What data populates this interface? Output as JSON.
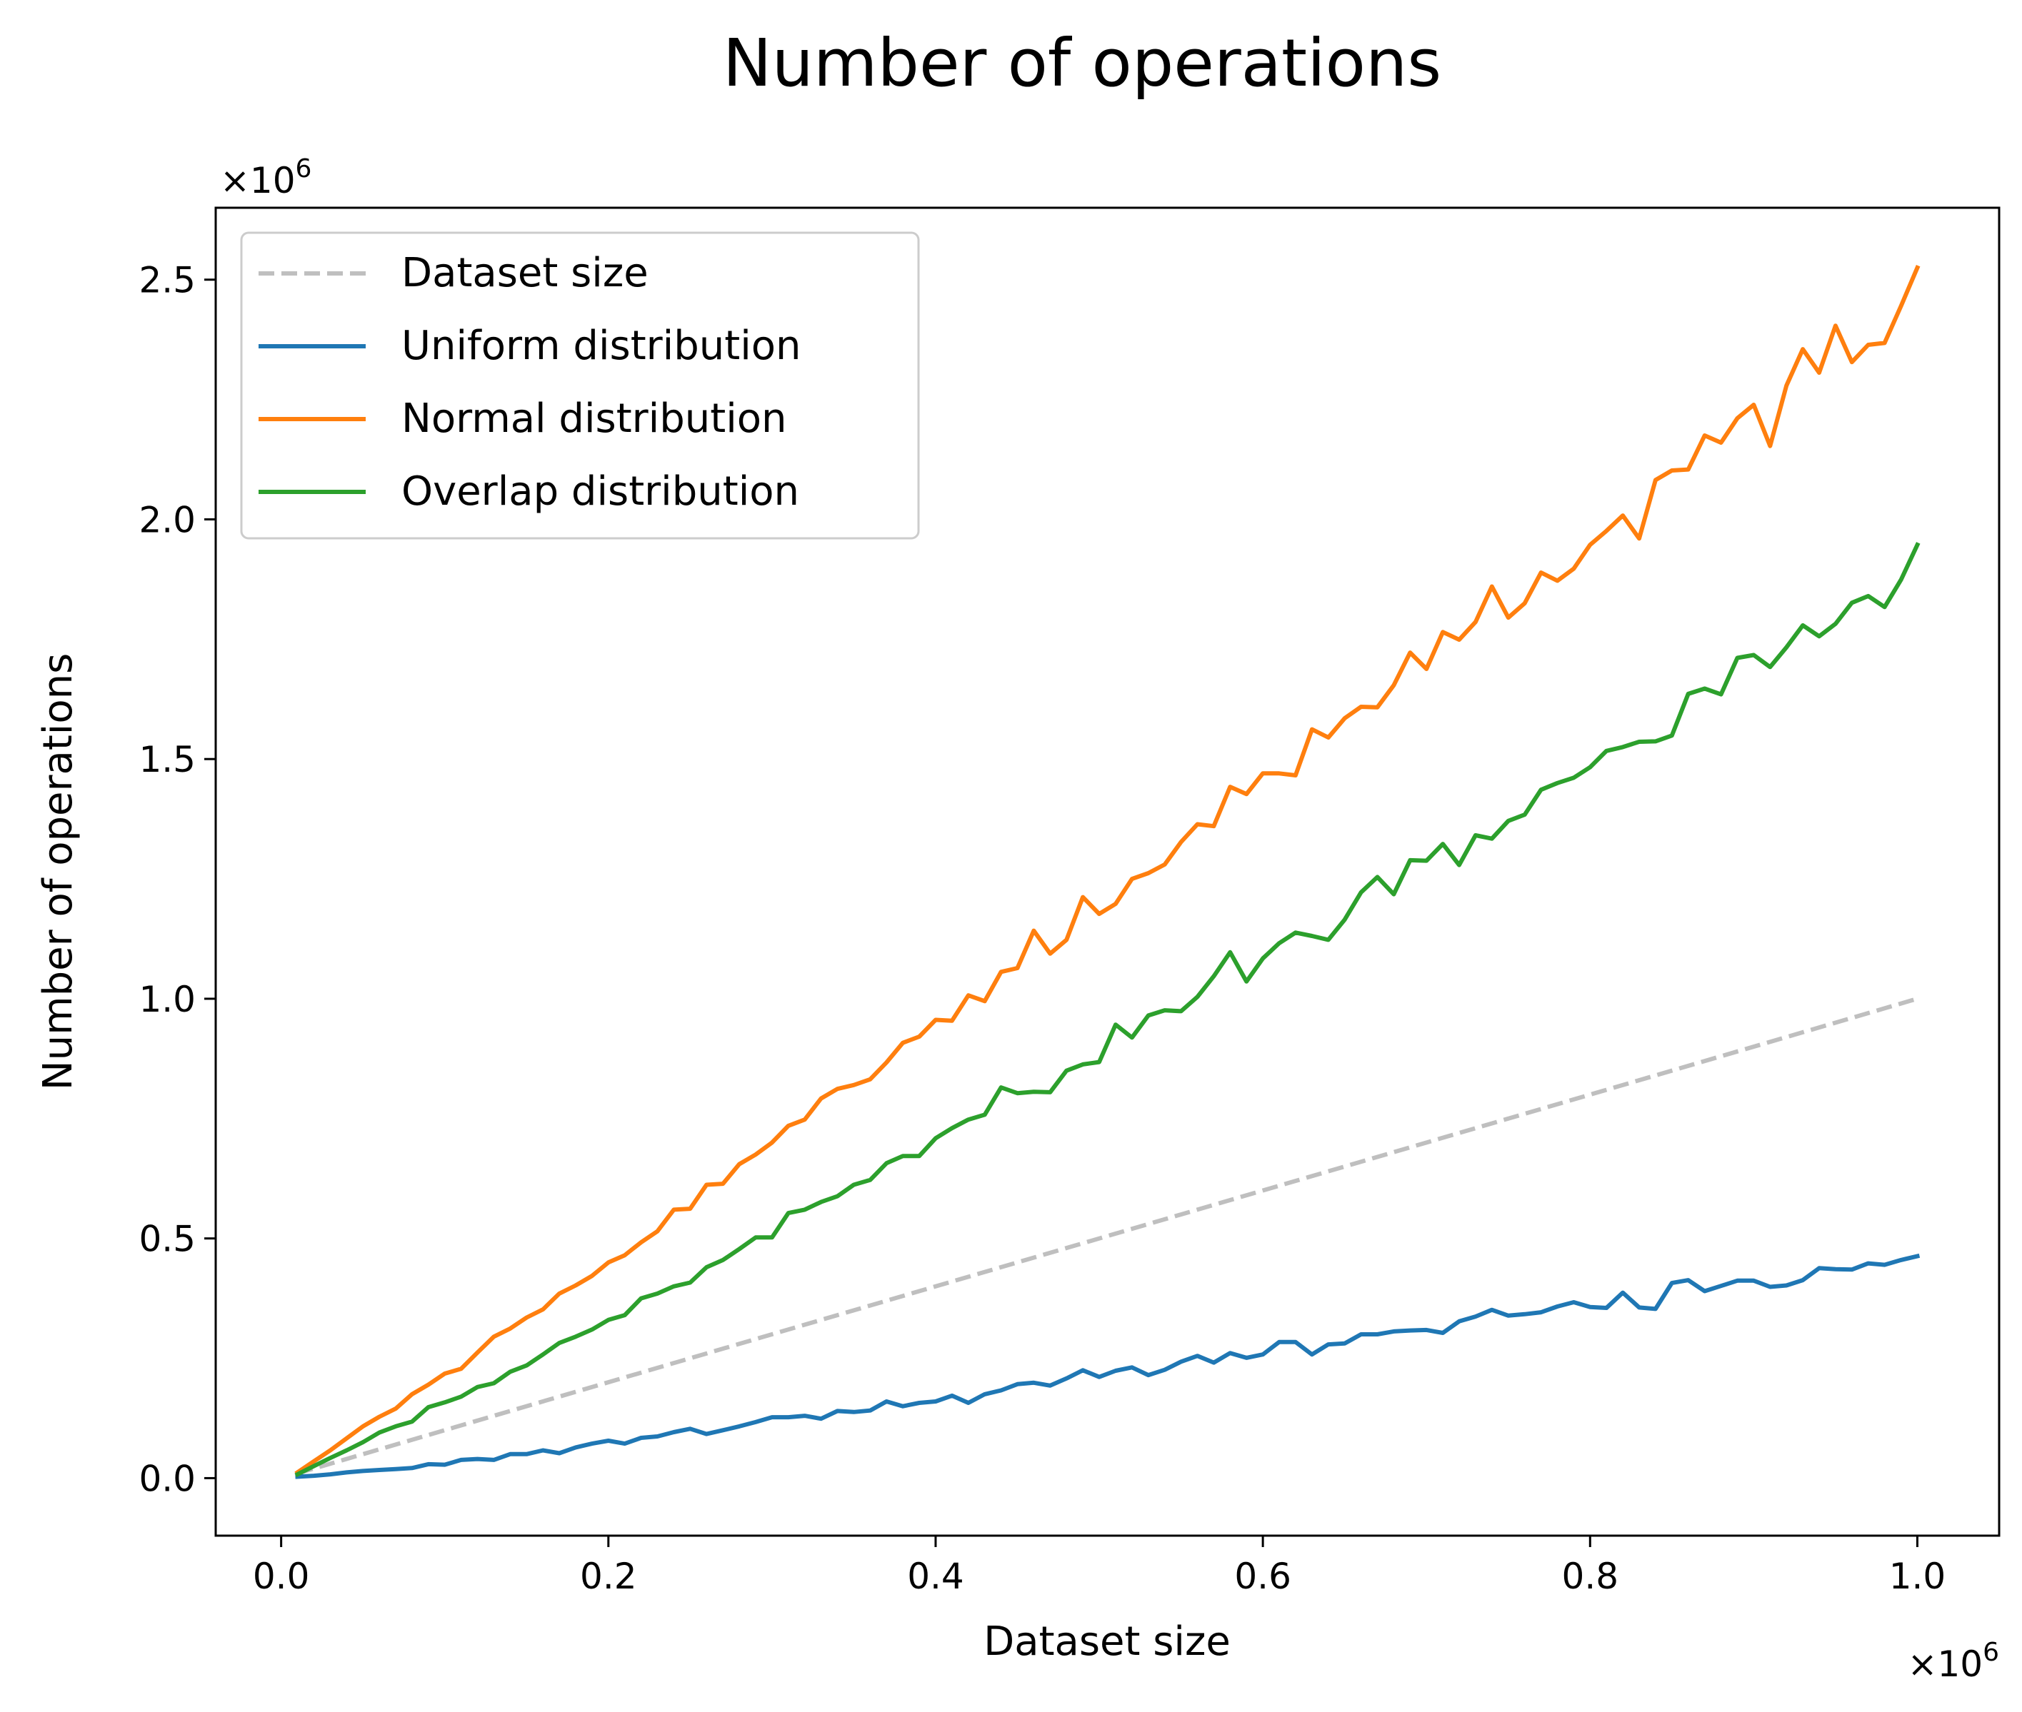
{
  "chart_data": {
    "type": "line",
    "title": "Number of operations",
    "xlabel": "Dataset size",
    "ylabel": "Number of operations",
    "x_offset_label": "×10",
    "x_offset_exp": "6",
    "y_offset_label": "×10",
    "y_offset_exp": "6",
    "xlim": [
      -0.04,
      1.05
    ],
    "ylim": [
      -0.12,
      2.65
    ],
    "xticks": [
      0.0,
      0.2,
      0.4,
      0.6,
      0.8,
      1.0
    ],
    "xtick_labels": [
      "0.0",
      "0.2",
      "0.4",
      "0.6",
      "0.8",
      "1.0"
    ],
    "yticks": [
      0.0,
      0.5,
      1.0,
      1.5,
      2.0,
      2.5
    ],
    "ytick_labels": [
      "0.0",
      "0.5",
      "1.0",
      "1.5",
      "2.0",
      "2.5"
    ],
    "legend_position": "top-left",
    "grid": false,
    "series": [
      {
        "name": "Dataset size",
        "color": "#bfbfbf",
        "dashed": true,
        "x": [
          0.01,
          1.0
        ],
        "y": [
          0.01,
          1.0
        ]
      },
      {
        "name": "Uniform distribution",
        "color": "#1f77b4",
        "dashed": false,
        "x": [
          0.01,
          0.02,
          0.03,
          0.04,
          0.05,
          0.06,
          0.07,
          0.08,
          0.09,
          0.1,
          0.11,
          0.12,
          0.13,
          0.14,
          0.15,
          0.16,
          0.17,
          0.18,
          0.19,
          0.2,
          0.21,
          0.22,
          0.23,
          0.24,
          0.25,
          0.26,
          0.27,
          0.28,
          0.29,
          0.3,
          0.31,
          0.32,
          0.33,
          0.34,
          0.35,
          0.36,
          0.37,
          0.38,
          0.39,
          0.4,
          0.41,
          0.42,
          0.43,
          0.44,
          0.45,
          0.46,
          0.47,
          0.48,
          0.49,
          0.5,
          0.51,
          0.52,
          0.53,
          0.54,
          0.55,
          0.56,
          0.57,
          0.58,
          0.59,
          0.6,
          0.61,
          0.62,
          0.63,
          0.64,
          0.65,
          0.66,
          0.67,
          0.68,
          0.69,
          0.7,
          0.71,
          0.72,
          0.73,
          0.74,
          0.75,
          0.76,
          0.77,
          0.78,
          0.79,
          0.8,
          0.81,
          0.82,
          0.83,
          0.84,
          0.85,
          0.86,
          0.87,
          0.88,
          0.89,
          0.9,
          0.91,
          0.92,
          0.93,
          0.94,
          0.95,
          0.96,
          0.97,
          0.98,
          0.99,
          1.0
        ],
        "y": [
          0.003,
          0.005,
          0.008,
          0.012,
          0.015,
          0.017,
          0.019,
          0.021,
          0.029,
          0.028,
          0.038,
          0.04,
          0.038,
          0.05,
          0.05,
          0.058,
          0.052,
          0.064,
          0.072,
          0.078,
          0.072,
          0.084,
          0.087,
          0.096,
          0.103,
          0.092,
          0.1,
          0.108,
          0.117,
          0.127,
          0.127,
          0.13,
          0.124,
          0.14,
          0.138,
          0.141,
          0.16,
          0.15,
          0.157,
          0.16,
          0.172,
          0.157,
          0.175,
          0.183,
          0.196,
          0.199,
          0.193,
          0.208,
          0.225,
          0.211,
          0.224,
          0.231,
          0.215,
          0.226,
          0.243,
          0.255,
          0.241,
          0.261,
          0.251,
          0.258,
          0.284,
          0.284,
          0.258,
          0.279,
          0.281,
          0.3,
          0.3,
          0.306,
          0.308,
          0.309,
          0.303,
          0.327,
          0.337,
          0.351,
          0.339,
          0.342,
          0.346,
          0.358,
          0.367,
          0.357,
          0.355,
          0.387,
          0.356,
          0.353,
          0.407,
          0.413,
          0.39,
          0.401,
          0.412,
          0.412,
          0.399,
          0.402,
          0.413,
          0.438,
          0.436,
          0.435,
          0.448,
          0.445,
          0.455,
          0.463
        ]
      },
      {
        "name": "Normal distribution",
        "color": "#ff7f0e",
        "dashed": false,
        "x": [
          0.01,
          0.02,
          0.03,
          0.04,
          0.05,
          0.06,
          0.07,
          0.08,
          0.09,
          0.1,
          0.11,
          0.12,
          0.13,
          0.14,
          0.15,
          0.16,
          0.17,
          0.18,
          0.19,
          0.2,
          0.21,
          0.22,
          0.23,
          0.24,
          0.25,
          0.26,
          0.27,
          0.28,
          0.29,
          0.3,
          0.31,
          0.32,
          0.33,
          0.34,
          0.35,
          0.36,
          0.37,
          0.38,
          0.39,
          0.4,
          0.41,
          0.42,
          0.43,
          0.44,
          0.45,
          0.46,
          0.47,
          0.48,
          0.49,
          0.5,
          0.51,
          0.52,
          0.53,
          0.54,
          0.55,
          0.56,
          0.57,
          0.58,
          0.59,
          0.6,
          0.61,
          0.62,
          0.63,
          0.64,
          0.65,
          0.66,
          0.67,
          0.68,
          0.69,
          0.7,
          0.71,
          0.72,
          0.73,
          0.74,
          0.75,
          0.76,
          0.77,
          0.78,
          0.79,
          0.8,
          0.81,
          0.82,
          0.83,
          0.84,
          0.85,
          0.86,
          0.87,
          0.88,
          0.89,
          0.9,
          0.91,
          0.92,
          0.93,
          0.94,
          0.95,
          0.96,
          0.97,
          0.98,
          0.99,
          1.0
        ],
        "y": [
          0.012,
          0.035,
          0.058,
          0.083,
          0.108,
          0.128,
          0.145,
          0.175,
          0.195,
          0.218,
          0.228,
          0.262,
          0.295,
          0.312,
          0.335,
          0.352,
          0.385,
          0.402,
          0.422,
          0.45,
          0.465,
          0.492,
          0.515,
          0.56,
          0.562,
          0.612,
          0.614,
          0.655,
          0.675,
          0.7,
          0.735,
          0.748,
          0.792,
          0.812,
          0.82,
          0.832,
          0.867,
          0.908,
          0.921,
          0.956,
          0.954,
          1.007,
          0.995,
          1.056,
          1.064,
          1.142,
          1.094,
          1.123,
          1.212,
          1.177,
          1.198,
          1.25,
          1.262,
          1.28,
          1.327,
          1.364,
          1.36,
          1.442,
          1.427,
          1.47,
          1.47,
          1.466,
          1.562,
          1.545,
          1.585,
          1.609,
          1.608,
          1.654,
          1.722,
          1.688,
          1.765,
          1.749,
          1.786,
          1.86,
          1.795,
          1.825,
          1.889,
          1.872,
          1.897,
          1.947,
          1.976,
          2.008,
          1.96,
          2.082,
          2.102,
          2.104,
          2.175,
          2.16,
          2.211,
          2.239,
          2.153,
          2.279,
          2.355,
          2.306,
          2.404,
          2.328,
          2.364,
          2.368,
          2.445,
          2.525
        ]
      },
      {
        "name": "Overlap distribution",
        "color": "#2ca02c",
        "dashed": false,
        "x": [
          0.01,
          0.02,
          0.03,
          0.04,
          0.05,
          0.06,
          0.07,
          0.08,
          0.09,
          0.1,
          0.11,
          0.12,
          0.13,
          0.14,
          0.15,
          0.16,
          0.17,
          0.18,
          0.19,
          0.2,
          0.21,
          0.22,
          0.23,
          0.24,
          0.25,
          0.26,
          0.27,
          0.28,
          0.29,
          0.3,
          0.31,
          0.32,
          0.33,
          0.34,
          0.35,
          0.36,
          0.37,
          0.38,
          0.39,
          0.4,
          0.41,
          0.42,
          0.43,
          0.44,
          0.45,
          0.46,
          0.47,
          0.48,
          0.49,
          0.5,
          0.51,
          0.52,
          0.53,
          0.54,
          0.55,
          0.56,
          0.57,
          0.58,
          0.59,
          0.6,
          0.61,
          0.62,
          0.63,
          0.64,
          0.65,
          0.66,
          0.67,
          0.68,
          0.69,
          0.7,
          0.71,
          0.72,
          0.73,
          0.74,
          0.75,
          0.76,
          0.77,
          0.78,
          0.79,
          0.8,
          0.81,
          0.82,
          0.83,
          0.84,
          0.85,
          0.86,
          0.87,
          0.88,
          0.89,
          0.9,
          0.91,
          0.92,
          0.93,
          0.94,
          0.95,
          0.96,
          0.97,
          0.98,
          0.99,
          1.0
        ],
        "y": [
          0.008,
          0.025,
          0.042,
          0.058,
          0.075,
          0.095,
          0.108,
          0.118,
          0.148,
          0.158,
          0.17,
          0.19,
          0.198,
          0.222,
          0.235,
          0.258,
          0.282,
          0.295,
          0.31,
          0.33,
          0.34,
          0.375,
          0.385,
          0.4,
          0.408,
          0.44,
          0.455,
          0.478,
          0.502,
          0.502,
          0.553,
          0.56,
          0.576,
          0.588,
          0.612,
          0.622,
          0.657,
          0.672,
          0.672,
          0.709,
          0.73,
          0.748,
          0.758,
          0.815,
          0.803,
          0.806,
          0.805,
          0.85,
          0.863,
          0.868,
          0.946,
          0.919,
          0.965,
          0.976,
          0.974,
          1.004,
          1.047,
          1.097,
          1.036,
          1.084,
          1.116,
          1.138,
          1.131,
          1.123,
          1.165,
          1.222,
          1.254,
          1.218,
          1.289,
          1.288,
          1.323,
          1.279,
          1.341,
          1.334,
          1.371,
          1.384,
          1.436,
          1.45,
          1.461,
          1.483,
          1.517,
          1.525,
          1.536,
          1.537,
          1.549,
          1.636,
          1.647,
          1.635,
          1.711,
          1.717,
          1.692,
          1.733,
          1.779,
          1.756,
          1.782,
          1.826,
          1.84,
          1.817,
          1.874,
          1.947
        ]
      }
    ]
  }
}
